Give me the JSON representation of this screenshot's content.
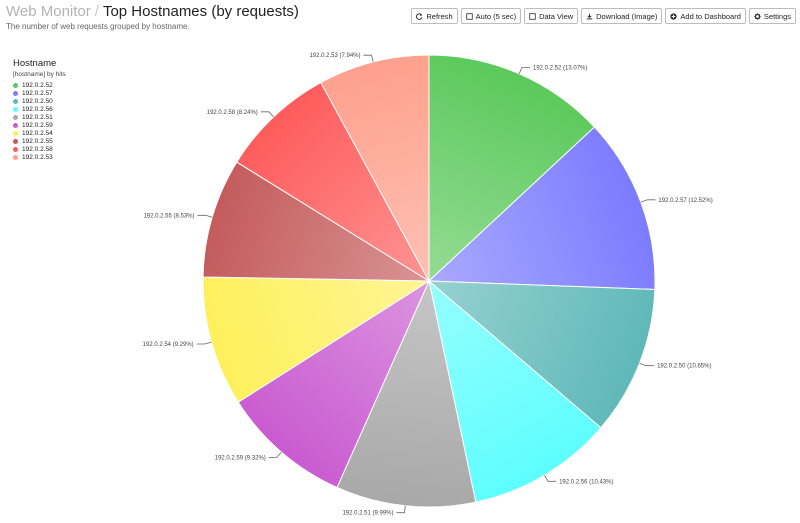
{
  "header": {
    "breadcrumb": "Web Monitor",
    "separator": "/",
    "title": "Top Hostnames (by requests)",
    "subtitle": "The number of web requests grouped by hostname."
  },
  "toolbar": [
    {
      "label": "Refresh",
      "icon": "refresh-icon"
    },
    {
      "label": "Auto (5 sec)",
      "icon": "checkbox-icon"
    },
    {
      "label": "Data View",
      "icon": "checkbox-icon"
    },
    {
      "label": "Download (Image)",
      "icon": "download-icon"
    },
    {
      "label": "Add to Dashboard",
      "icon": "plus-circle-icon"
    },
    {
      "label": "Settings",
      "icon": "gear-icon"
    }
  ],
  "legend": {
    "title": "Hostname",
    "subtitle": "[hostname] by hits"
  },
  "chart_data": {
    "type": "pie",
    "start_angle_deg": 0,
    "direction": "clockwise",
    "slices": [
      {
        "label": "192.0.2.52",
        "value": 13.07,
        "display": "192.0.2.52 (13.07%)",
        "color": "#5bc95b"
      },
      {
        "label": "192.0.2.57",
        "value": 12.52,
        "display": "192.0.2.57 (12.52%)",
        "color": "#7b7bff"
      },
      {
        "label": "192.0.2.50",
        "value": 10.65,
        "display": "192.0.2.50 (10.65%)",
        "color": "#5fb8b8"
      },
      {
        "label": "192.0.2.56",
        "value": 10.43,
        "display": "192.0.2.56 (10.43%)",
        "color": "#5dfefe"
      },
      {
        "label": "192.0.2.51",
        "value": 9.99,
        "display": "192.0.2.51 (9.99%)",
        "color": "#a8a8a8"
      },
      {
        "label": "192.0.2.59",
        "value": 9.32,
        "display": "192.0.2.59 (9.32%)",
        "color": "#c95bd0"
      },
      {
        "label": "192.0.2.54",
        "value": 9.29,
        "display": "192.0.2.54 (9.29%)",
        "color": "#fef05b"
      },
      {
        "label": "192.0.2.55",
        "value": 8.53,
        "display": "192.0.2.55 (8.53%)",
        "color": "#c45b5b"
      },
      {
        "label": "192.0.2.58",
        "value": 8.24,
        "display": "192.0.2.58 (8.24%)",
        "color": "#fe5b5b"
      },
      {
        "label": "192.0.2.53",
        "value": 7.94,
        "display": "192.0.2.53 (7.94%)",
        "color": "#fea08c"
      }
    ]
  }
}
